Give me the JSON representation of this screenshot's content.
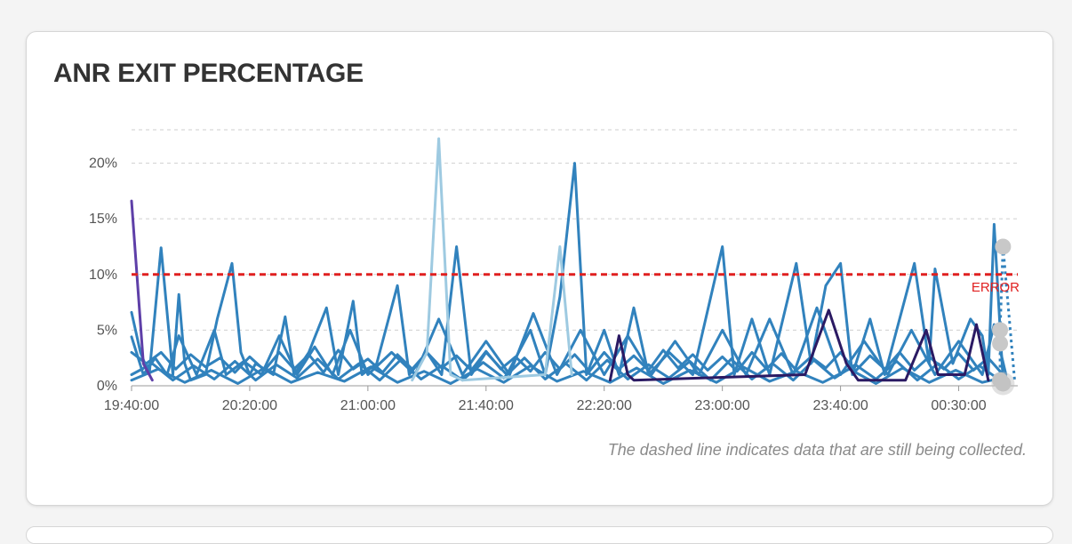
{
  "card": {
    "title": "ANR EXIT PERCENTAGE",
    "footnote": "The dashed line indicates data that are still being collected."
  },
  "chart_data": {
    "type": "line",
    "ylabel": "",
    "xlabel": "",
    "ylim": [
      0,
      23
    ],
    "yticks": [
      {
        "value": 0,
        "label": "0%"
      },
      {
        "value": 5,
        "label": "5%"
      },
      {
        "value": 10,
        "label": "10%"
      },
      {
        "value": 15,
        "label": "15%"
      },
      {
        "value": 20,
        "label": "20%"
      }
    ],
    "xlim": [
      0,
      300
    ],
    "xticks": [
      {
        "value": 0,
        "label": "19:40:00"
      },
      {
        "value": 40,
        "label": "20:20:00"
      },
      {
        "value": 80,
        "label": "21:00:00"
      },
      {
        "value": 120,
        "label": "21:40:00"
      },
      {
        "value": 160,
        "label": "22:20:00"
      },
      {
        "value": 200,
        "label": "23:00:00"
      },
      {
        "value": 240,
        "label": "23:40:00"
      },
      {
        "value": 280,
        "label": "00:30:00"
      }
    ],
    "grid": true,
    "threshold": {
      "value": 10,
      "label": "ERROR",
      "color": "#e02020"
    },
    "colors": {
      "main": "#3182bd",
      "light": "#9ecae1",
      "dark": "#2b1a63",
      "purple": "#5e3fa8",
      "pending": "#c8c8c8"
    },
    "series": [
      {
        "color": "main",
        "points": [
          [
            0,
            6.6
          ],
          [
            3,
            3
          ],
          [
            6,
            1
          ],
          [
            10,
            12.4
          ],
          [
            14,
            1
          ],
          [
            16,
            8.2
          ],
          [
            18,
            2
          ],
          [
            20,
            0.5
          ],
          [
            25,
            1
          ],
          [
            29,
            6
          ],
          [
            34,
            11
          ],
          [
            37,
            3
          ],
          [
            40,
            1
          ],
          [
            42,
            2
          ],
          [
            48,
            1
          ],
          [
            52,
            6.2
          ],
          [
            55,
            1
          ],
          [
            60,
            3
          ],
          [
            66,
            7
          ],
          [
            70,
            1
          ],
          [
            75,
            7.6
          ],
          [
            78,
            1
          ],
          [
            83,
            2
          ],
          [
            90,
            9
          ],
          [
            94,
            1
          ],
          [
            100,
            3
          ],
          [
            105,
            1
          ],
          [
            110,
            12.5
          ],
          [
            115,
            1
          ],
          [
            120,
            3
          ],
          [
            127,
            1
          ],
          [
            135,
            5
          ],
          [
            140,
            1
          ],
          [
            145,
            8
          ],
          [
            150,
            20
          ],
          [
            154,
            1
          ],
          [
            160,
            5
          ],
          [
            165,
            1
          ],
          [
            170,
            7
          ],
          [
            175,
            1
          ],
          [
            182,
            3
          ],
          [
            190,
            1
          ],
          [
            200,
            12.5
          ],
          [
            204,
            1
          ],
          [
            210,
            6
          ],
          [
            216,
            1
          ],
          [
            225,
            11
          ],
          [
            230,
            2
          ],
          [
            235,
            9
          ],
          [
            240,
            11
          ],
          [
            244,
            1
          ],
          [
            250,
            6
          ],
          [
            255,
            1
          ],
          [
            265,
            11
          ],
          [
            270,
            2
          ],
          [
            272,
            10.5
          ],
          [
            278,
            2
          ],
          [
            284,
            6
          ],
          [
            288,
            4.5
          ],
          [
            290,
            1
          ],
          [
            292,
            14.5
          ],
          [
            295,
            0.5
          ]
        ]
      },
      {
        "color": "main",
        "points": [
          [
            0,
            4.4
          ],
          [
            4,
            1
          ],
          [
            8,
            2.5
          ],
          [
            12,
            1
          ],
          [
            16,
            4.5
          ],
          [
            22,
            1
          ],
          [
            28,
            5
          ],
          [
            32,
            1
          ],
          [
            38,
            2.2
          ],
          [
            44,
            1
          ],
          [
            50,
            4.5
          ],
          [
            56,
            1
          ],
          [
            62,
            3.5
          ],
          [
            68,
            1
          ],
          [
            74,
            5
          ],
          [
            80,
            1
          ],
          [
            88,
            3
          ],
          [
            96,
            1
          ],
          [
            104,
            6
          ],
          [
            112,
            1
          ],
          [
            120,
            4
          ],
          [
            128,
            1
          ],
          [
            136,
            6.5
          ],
          [
            144,
            1
          ],
          [
            152,
            5
          ],
          [
            160,
            1
          ],
          [
            168,
            4.5
          ],
          [
            176,
            1
          ],
          [
            184,
            4
          ],
          [
            192,
            1
          ],
          [
            200,
            5
          ],
          [
            208,
            1
          ],
          [
            216,
            6
          ],
          [
            224,
            1
          ],
          [
            232,
            7
          ],
          [
            240,
            1
          ],
          [
            248,
            4
          ],
          [
            256,
            1
          ],
          [
            264,
            5
          ],
          [
            272,
            1
          ],
          [
            280,
            4
          ],
          [
            288,
            1
          ],
          [
            292,
            5.5
          ],
          [
            296,
            1
          ]
        ]
      },
      {
        "color": "main",
        "points": [
          [
            0,
            3
          ],
          [
            5,
            2
          ],
          [
            10,
            3
          ],
          [
            15,
            1.5
          ],
          [
            20,
            2.8
          ],
          [
            25,
            1.7
          ],
          [
            30,
            2.5
          ],
          [
            35,
            1.2
          ],
          [
            40,
            2.6
          ],
          [
            45,
            1.4
          ],
          [
            50,
            3
          ],
          [
            55,
            1.5
          ],
          [
            60,
            2.8
          ],
          [
            65,
            1.2
          ],
          [
            70,
            3.2
          ],
          [
            75,
            1.5
          ],
          [
            80,
            2.4
          ],
          [
            85,
            1.2
          ],
          [
            90,
            2.8
          ],
          [
            95,
            1.5
          ],
          [
            100,
            3
          ],
          [
            105,
            1.6
          ],
          [
            110,
            2.7
          ],
          [
            115,
            1.4
          ],
          [
            120,
            3.1
          ],
          [
            125,
            1.5
          ],
          [
            130,
            2.6
          ],
          [
            135,
            1.3
          ],
          [
            140,
            3
          ],
          [
            145,
            1.5
          ],
          [
            150,
            2.8
          ],
          [
            155,
            1.3
          ],
          [
            160,
            3
          ],
          [
            165,
            1.5
          ],
          [
            170,
            2.7
          ],
          [
            175,
            1.4
          ],
          [
            180,
            3.2
          ],
          [
            185,
            1.6
          ],
          [
            190,
            2.8
          ],
          [
            195,
            1.4
          ],
          [
            200,
            2.6
          ],
          [
            205,
            1.3
          ],
          [
            210,
            3
          ],
          [
            215,
            1.5
          ],
          [
            220,
            2.9
          ],
          [
            225,
            1.4
          ],
          [
            230,
            2.6
          ],
          [
            235,
            1.6
          ],
          [
            240,
            3
          ],
          [
            245,
            1.3
          ],
          [
            250,
            2.7
          ],
          [
            255,
            1.5
          ],
          [
            260,
            3
          ],
          [
            265,
            1.4
          ],
          [
            270,
            2.6
          ],
          [
            275,
            1.5
          ],
          [
            280,
            2.9
          ],
          [
            285,
            1.4
          ],
          [
            290,
            2.5
          ],
          [
            295,
            1
          ]
        ]
      },
      {
        "color": "main",
        "points": [
          [
            0,
            1
          ],
          [
            7,
            2
          ],
          [
            14,
            0.5
          ],
          [
            21,
            1.8
          ],
          [
            28,
            0.6
          ],
          [
            35,
            2.2
          ],
          [
            42,
            0.5
          ],
          [
            49,
            1.9
          ],
          [
            56,
            0.7
          ],
          [
            63,
            2.4
          ],
          [
            70,
            0.6
          ],
          [
            77,
            2
          ],
          [
            84,
            0.5
          ],
          [
            91,
            2.3
          ],
          [
            98,
            0.6
          ],
          [
            105,
            1.8
          ],
          [
            112,
            0.5
          ],
          [
            119,
            2.1
          ],
          [
            126,
            0.7
          ],
          [
            133,
            2.5
          ],
          [
            140,
            0.6
          ],
          [
            147,
            2
          ],
          [
            154,
            0.5
          ],
          [
            161,
            2.3
          ],
          [
            168,
            0.6
          ],
          [
            175,
            1.9
          ],
          [
            182,
            0.7
          ],
          [
            189,
            2.2
          ],
          [
            196,
            0.5
          ],
          [
            203,
            2.4
          ],
          [
            210,
            0.6
          ],
          [
            217,
            2
          ],
          [
            224,
            0.5
          ],
          [
            231,
            2.3
          ],
          [
            238,
            0.7
          ],
          [
            245,
            1.9
          ],
          [
            252,
            0.6
          ],
          [
            259,
            2.2
          ],
          [
            266,
            0.5
          ],
          [
            273,
            2
          ],
          [
            280,
            0.6
          ],
          [
            287,
            1.8
          ],
          [
            294,
            0.5
          ]
        ]
      },
      {
        "color": "main",
        "points": [
          [
            0,
            0.5
          ],
          [
            9,
            1.5
          ],
          [
            18,
            0.3
          ],
          [
            27,
            1.4
          ],
          [
            36,
            0.2
          ],
          [
            45,
            1.6
          ],
          [
            54,
            0.3
          ],
          [
            63,
            1.2
          ],
          [
            72,
            0.4
          ],
          [
            81,
            1.7
          ],
          [
            90,
            0.3
          ],
          [
            99,
            1.3
          ],
          [
            108,
            0.2
          ],
          [
            117,
            1.5
          ],
          [
            126,
            0.3
          ],
          [
            135,
            1.8
          ],
          [
            144,
            0.4
          ],
          [
            153,
            1.3
          ],
          [
            162,
            0.3
          ],
          [
            171,
            1.6
          ],
          [
            180,
            0.2
          ],
          [
            189,
            1.4
          ],
          [
            198,
            0.3
          ],
          [
            207,
            1.7
          ],
          [
            216,
            0.4
          ],
          [
            225,
            1.3
          ],
          [
            234,
            0.3
          ],
          [
            243,
            1.5
          ],
          [
            252,
            0.2
          ],
          [
            261,
            1.6
          ],
          [
            270,
            0.3
          ],
          [
            279,
            1.4
          ],
          [
            288,
            0.3
          ],
          [
            296,
            0.8
          ]
        ]
      },
      {
        "color": "light",
        "points": [
          [
            95,
            0.5
          ],
          [
            100,
            3
          ],
          [
            104,
            22.2
          ],
          [
            108,
            1
          ],
          [
            112,
            0.5
          ],
          [
            140,
            1
          ],
          [
            145,
            12.5
          ],
          [
            149,
            1
          ]
        ]
      },
      {
        "color": "dark",
        "points": [
          [
            162,
            0.5
          ],
          [
            165,
            4.5
          ],
          [
            168,
            1
          ],
          [
            170,
            0.5
          ],
          [
            228,
            1
          ],
          [
            236,
            6.8
          ],
          [
            242,
            2
          ],
          [
            246,
            0.5
          ],
          [
            262,
            0.5
          ],
          [
            269,
            5
          ],
          [
            273,
            1
          ],
          [
            282,
            1
          ],
          [
            286,
            5.5
          ],
          [
            290,
            0.5
          ]
        ]
      },
      {
        "color": "purple",
        "points": [
          [
            0,
            16.6
          ],
          [
            4,
            2
          ],
          [
            7,
            0.5
          ]
        ]
      }
    ],
    "pending": {
      "color": "pending",
      "points": [
        [
          295,
          12.5
        ],
        [
          294,
          5
        ],
        [
          294,
          3.8
        ],
        [
          294,
          0.5
        ],
        [
          295,
          0.2
        ]
      ]
    }
  }
}
